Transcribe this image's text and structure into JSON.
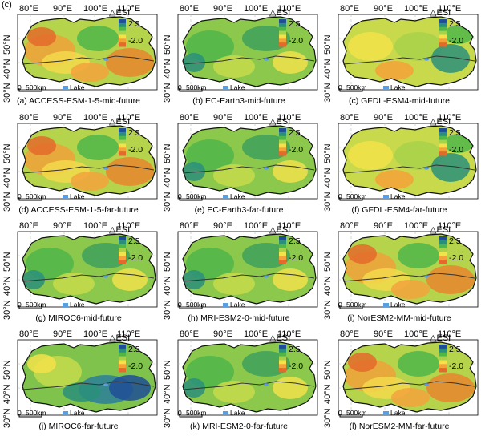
{
  "figure_label": "(c)",
  "lon_ticks": [
    "80°E",
    "90°E",
    "100°E",
    "110°E"
  ],
  "lat_ticks": [
    "50°N",
    "40°N",
    "30°N"
  ],
  "legend": {
    "title_symbol": "△",
    "title": "ESI",
    "max": "2.5",
    "min": "-2.0",
    "colors": [
      "#1f4e96",
      "#2a8f7a",
      "#4fb64a",
      "#a8d14a",
      "#f3e24a",
      "#f4a23a",
      "#e36a2a"
    ]
  },
  "scale_bar": {
    "zero": "0",
    "distance": "500km"
  },
  "lake_legend": {
    "label": "Lake",
    "color": "#5aa0e0"
  },
  "colors": {
    "boundary": "#111111",
    "river": "#333333",
    "grid": "#bbbbbb"
  },
  "panels": [
    {
      "id": "a",
      "caption": "(a) ACCESS-ESM-1-5-mid-future",
      "pattern": "orange"
    },
    {
      "id": "b",
      "caption": "(b) EC-Earth3-mid-future",
      "pattern": "green"
    },
    {
      "id": "c",
      "caption": "(c) GFDL-ESM4-mid-future",
      "pattern": "yellow"
    },
    {
      "id": "d",
      "caption": "(d) ACCESS-ESM-1-5-far-future",
      "pattern": "orange"
    },
    {
      "id": "e",
      "caption": "(e) EC-Earth3-far-future",
      "pattern": "green"
    },
    {
      "id": "f",
      "caption": "(f) GFDL-ESM4-far-future",
      "pattern": "yellow"
    },
    {
      "id": "g",
      "caption": "(g) MIROC6-mid-future",
      "pattern": "green"
    },
    {
      "id": "h",
      "caption": "(h) MRI-ESM2-0-mid-future",
      "pattern": "green"
    },
    {
      "id": "i",
      "caption": "(i) NorESM2-MM-mid-future",
      "pattern": "orange"
    },
    {
      "id": "j",
      "caption": "(j) MIROC6-far-future",
      "pattern": "blue"
    },
    {
      "id": "k",
      "caption": "(k) MRI-ESM2-0-far-future",
      "pattern": "green"
    },
    {
      "id": "l",
      "caption": "(l) NorESM2-MM-far-future",
      "pattern": "orange"
    }
  ]
}
